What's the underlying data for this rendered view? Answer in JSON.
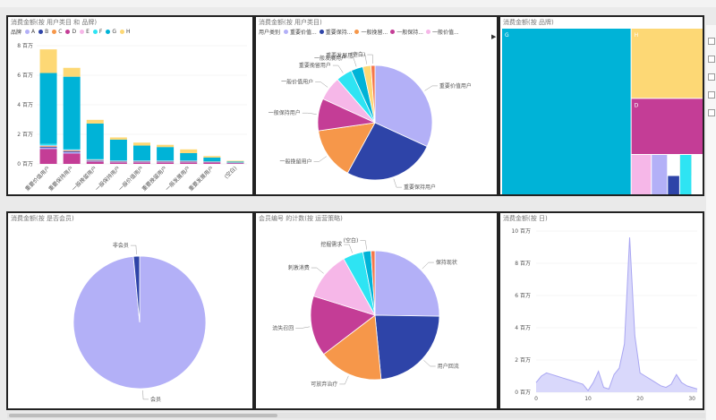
{
  "palette": {
    "A": "#b3b0f7",
    "B": "#2e44a8",
    "C": "#f6974a",
    "D": "#c43d96",
    "E": "#f6b7e8",
    "F": "#2ee4f3",
    "G": "#00b3d7",
    "H": "#fdd875"
  },
  "panels": {
    "p1": {
      "title": "消费金额(按 用户类目 和 品牌)",
      "legend_title": "品牌",
      "legend": [
        "A",
        "B",
        "C",
        "D",
        "E",
        "F",
        "G",
        "H"
      ]
    },
    "p2": {
      "title": "消费金额(按 用户类目)",
      "legend_title": "用户类别",
      "legend": [
        {
          "label": "重要价值...",
          "color": "#b3b0f7"
        },
        {
          "label": "重要保持...",
          "color": "#2e44a8"
        },
        {
          "label": "一般挽留...",
          "color": "#f6974a"
        },
        {
          "label": "一般保持...",
          "color": "#c43d96"
        },
        {
          "label": "一般价值...",
          "color": "#f6b7e8"
        }
      ]
    },
    "p3": {
      "title": "消费金额(按 品牌)"
    },
    "p4": {
      "title": "消费金额(按 是否会员)"
    },
    "p5": {
      "title": "会员编号 的计数(按 运营策略)"
    },
    "p6": {
      "title": "消费金额(按 日)"
    }
  },
  "chart_data": [
    {
      "type": "bar",
      "stacked": true,
      "title": "消费金额(按 用户类目 和 品牌)",
      "ylim": [
        0,
        8
      ],
      "yticks": [
        "0 百万",
        "2 百万",
        "4 百万",
        "6 百万",
        "8 百万"
      ],
      "categories": [
        "重要价值用户",
        "重要保持用户",
        "一般挽留用户",
        "一般保持用户",
        "一般价值用户",
        "重要挽留用户",
        "一般发展用户",
        "重要发展用户",
        "(空白)"
      ],
      "series": [
        {
          "name": "A",
          "values": [
            0.1,
            0.1,
            0.05,
            0.05,
            0.05,
            0.05,
            0.05,
            0.03,
            0.02
          ]
        },
        {
          "name": "B",
          "values": [
            0.05,
            0.05,
            0.03,
            0.02,
            0.02,
            0.02,
            0.02,
            0.01,
            0.01
          ]
        },
        {
          "name": "C",
          "values": [
            0.05,
            0.05,
            0.03,
            0.02,
            0.02,
            0.02,
            0.02,
            0.01,
            0.01
          ]
        },
        {
          "name": "D",
          "values": [
            1.0,
            0.7,
            0.15,
            0.1,
            0.1,
            0.1,
            0.1,
            0.1,
            0.05
          ]
        },
        {
          "name": "E",
          "values": [
            0.05,
            0.05,
            0.03,
            0.02,
            0.02,
            0.02,
            0.02,
            0.01,
            0.01
          ]
        },
        {
          "name": "F",
          "values": [
            0.1,
            0.05,
            0.04,
            0.03,
            0.03,
            0.03,
            0.02,
            0.02,
            0.01
          ]
        },
        {
          "name": "G",
          "values": [
            4.8,
            4.9,
            2.4,
            1.4,
            1.0,
            0.9,
            0.5,
            0.25,
            0.05
          ]
        },
        {
          "name": "H",
          "values": [
            1.6,
            0.6,
            0.25,
            0.15,
            0.2,
            0.15,
            0.25,
            0.1,
            0.05
          ]
        }
      ]
    },
    {
      "type": "pie",
      "title": "消费金额(按 用户类目)",
      "slices": [
        {
          "label": "重要价值用户",
          "value": 28,
          "color": "#b3b0f7"
        },
        {
          "label": "重要保持用户",
          "value": 23,
          "color": "#2e44a8"
        },
        {
          "label": "一般挽留用户",
          "value": 13,
          "color": "#f6974a"
        },
        {
          "label": "一般保持用户",
          "value": 8,
          "color": "#c43d96"
        },
        {
          "label": "一般价值用户",
          "value": 6,
          "color": "#f6b7e8"
        },
        {
          "label": "重要挽留用户",
          "value": 4,
          "color": "#2ee4f3"
        },
        {
          "label": "一般发展用户",
          "value": 3,
          "color": "#00b3d7"
        },
        {
          "label": "重要发展用户",
          "value": 2,
          "color": "#fdd875"
        },
        {
          "label": "(空白)",
          "value": 1,
          "color": "#f6774a"
        }
      ]
    },
    {
      "type": "treemap",
      "title": "消费金额(按 品牌)",
      "items": [
        {
          "label": "G",
          "value": 64,
          "color": "#00b3d7"
        },
        {
          "label": "H",
          "value": 15,
          "color": "#fdd875"
        },
        {
          "label": "D",
          "value": 12,
          "color": "#c43d96"
        },
        {
          "label": "E",
          "value": 2.5,
          "color": "#f6b7e8"
        },
        {
          "label": "A",
          "value": 2,
          "color": "#b3b0f7"
        },
        {
          "label": "C",
          "value": 1.5,
          "color": "#f6974a"
        },
        {
          "label": "B",
          "value": 1.5,
          "color": "#2e44a8"
        },
        {
          "label": "F",
          "value": 1.5,
          "color": "#2ee4f3"
        }
      ]
    },
    {
      "type": "pie",
      "title": "消费金额(按 是否会员)",
      "slices": [
        {
          "label": "会员",
          "value": 98.5,
          "color": "#b3b0f7"
        },
        {
          "label": "非会员",
          "value": 1.5,
          "color": "#2e44a8"
        }
      ]
    },
    {
      "type": "pie",
      "title": "会员编号 的计数(按 运营策略)",
      "slices": [
        {
          "label": "保持现状",
          "value": 25,
          "color": "#b3b0f7"
        },
        {
          "label": "用户回流",
          "value": 23,
          "color": "#2e44a8"
        },
        {
          "label": "可放弃治疗",
          "value": 16,
          "color": "#f6974a"
        },
        {
          "label": "流失召回",
          "value": 15,
          "color": "#c43d96"
        },
        {
          "label": "刺激消费",
          "value": 12,
          "color": "#f6b7e8"
        },
        {
          "label": "挖掘需求",
          "value": 5,
          "color": "#2ee4f3"
        },
        {
          "label": "(空白)",
          "value": 2,
          "color": "#00b3d7"
        },
        {
          "label": "",
          "value": 1,
          "color": "#f6774a"
        }
      ]
    },
    {
      "type": "area",
      "title": "消费金额(按 日)",
      "xlim": [
        0,
        31
      ],
      "ylim": [
        0,
        10
      ],
      "xticks": [
        0,
        10,
        20,
        30
      ],
      "yticks": [
        "0 百万",
        "2 百万",
        "4 百万",
        "6 百万",
        "8 百万",
        "10 百万"
      ],
      "x": [
        0,
        1,
        2,
        3,
        4,
        5,
        6,
        7,
        8,
        9,
        10,
        11,
        12,
        13,
        14,
        15,
        16,
        17,
        18,
        19,
        20,
        21,
        22,
        23,
        24,
        25,
        26,
        27,
        28,
        29,
        30,
        31
      ],
      "values": [
        0.6,
        1.0,
        1.2,
        1.1,
        1.0,
        0.9,
        0.8,
        0.7,
        0.6,
        0.5,
        0.1,
        0.6,
        1.3,
        0.3,
        0.2,
        1.1,
        1.5,
        3.0,
        9.6,
        3.5,
        1.2,
        1.0,
        0.8,
        0.6,
        0.4,
        0.3,
        0.5,
        1.1,
        0.6,
        0.4,
        0.3,
        0.2
      ]
    }
  ]
}
